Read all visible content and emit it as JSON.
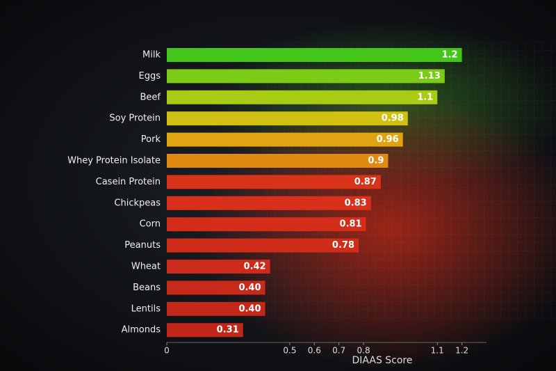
{
  "chart_data": {
    "type": "barh",
    "categories": [
      "Milk",
      "Eggs",
      "Beef",
      "Soy Protein",
      "Pork",
      "Whey Protein Isolate",
      "Casein Protein",
      "Chickpeas",
      "Corn",
      "Peanuts",
      "Wheat",
      "Beans",
      "Lentils",
      "Almonds"
    ],
    "values": [
      1.2,
      1.13,
      1.1,
      0.98,
      0.96,
      0.9,
      0.87,
      0.83,
      0.81,
      0.78,
      0.42,
      0.4,
      0.4,
      0.31
    ],
    "value_labels": [
      "1.2",
      "1.13",
      "1.1",
      "0.98",
      "0.96",
      "0.9",
      "0.87",
      "0.83",
      "0.81",
      "0.78",
      "0.42",
      "0.40",
      "0.40",
      "0.31"
    ],
    "colors": [
      "#44c51a",
      "#7ccc17",
      "#a8cc14",
      "#cfc012",
      "#e0a312",
      "#e08a14",
      "#d9341a",
      "#d8301a",
      "#d42e1a",
      "#d02c1a",
      "#cc2a1a",
      "#c82a1a",
      "#c4281a",
      "#c0261a"
    ],
    "xlabel": "DIAAS Score",
    "xlim": [
      0,
      1.3
    ],
    "xticks": [
      0,
      0.5,
      0.6,
      0.7,
      0.8,
      1.1,
      1.2
    ]
  }
}
